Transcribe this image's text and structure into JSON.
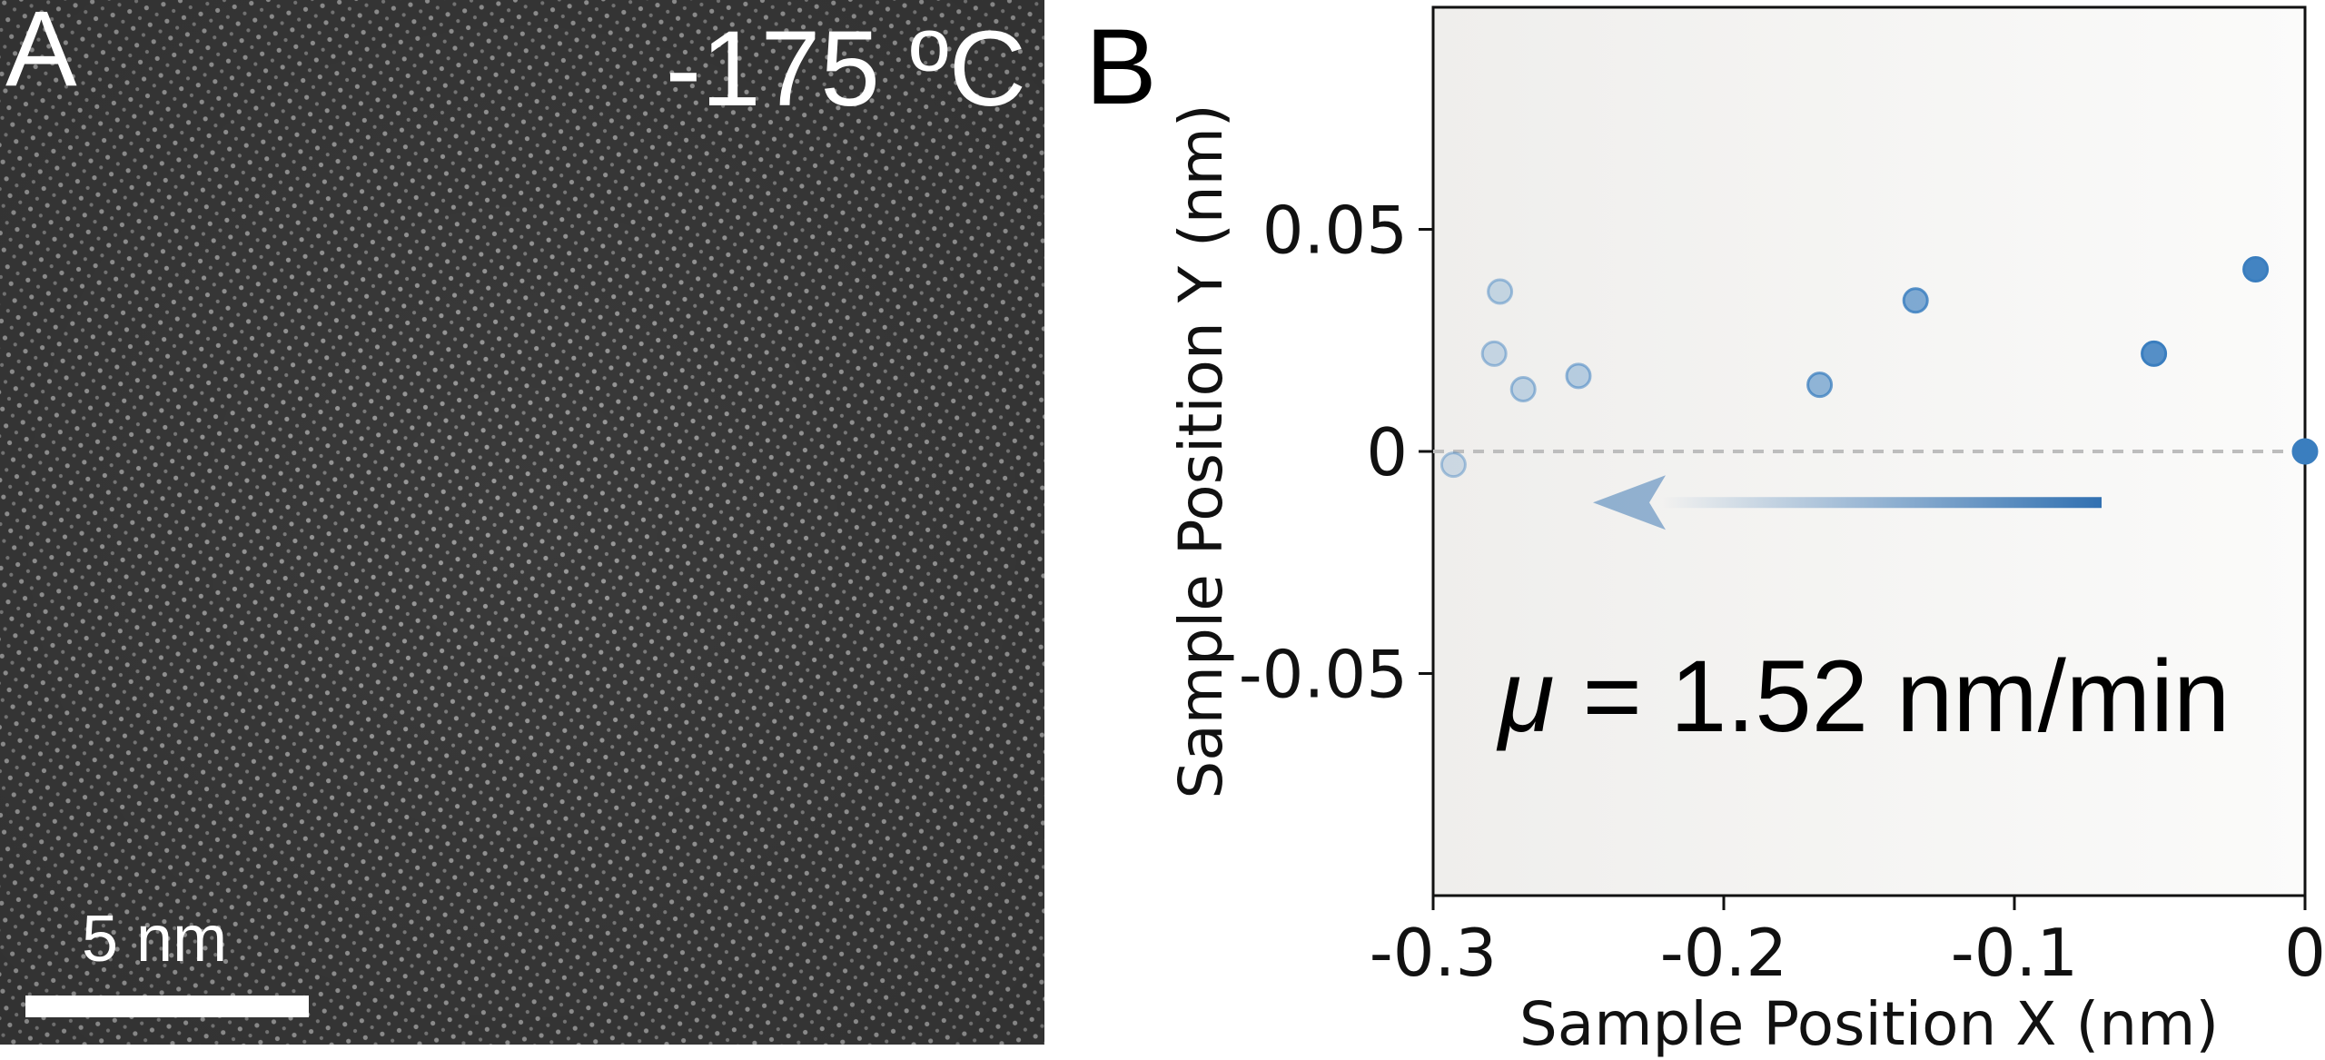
{
  "panel_a": {
    "label": "A",
    "temperature": "-175 ºC",
    "scale_bar_label": "5 nm"
  },
  "panel_b": {
    "label": "B",
    "annotation_mu": "μ",
    "annotation_rest": " = 1.52 nm/min"
  },
  "colors": {
    "points": "#3a7ebf",
    "arrow": "#2f6fb0",
    "zero_line": "#bdbdbd",
    "plot_background": "#f3f2f0"
  },
  "chart_data": {
    "type": "scatter",
    "title": "",
    "xlabel": "Sample Position X (nm)",
    "ylabel": "Sample Position Y (nm)",
    "xlim": [
      -0.3,
      0.0
    ],
    "ylim": [
      -0.1,
      0.1
    ],
    "xticks": [
      -0.3,
      -0.2,
      -0.1,
      0
    ],
    "xtick_labels": [
      "-0.3",
      "-0.2",
      "-0.1",
      "0"
    ],
    "yticks": [
      0.05,
      0,
      -0.05
    ],
    "ytick_labels": [
      "0.05",
      "0",
      "-0.05"
    ],
    "grid": false,
    "zero_line": true,
    "points": [
      {
        "x": 0.0,
        "y": 0.0
      },
      {
        "x": -0.017,
        "y": 0.041
      },
      {
        "x": -0.052,
        "y": 0.022
      },
      {
        "x": -0.134,
        "y": 0.034
      },
      {
        "x": -0.167,
        "y": 0.015
      },
      {
        "x": -0.25,
        "y": 0.017
      },
      {
        "x": -0.269,
        "y": 0.014
      },
      {
        "x": -0.277,
        "y": 0.036
      },
      {
        "x": -0.279,
        "y": 0.022
      },
      {
        "x": -0.293,
        "y": -0.003
      }
    ],
    "arrow": {
      "from_x": -0.07,
      "to_x": -0.245,
      "y": -0.0115
    }
  }
}
